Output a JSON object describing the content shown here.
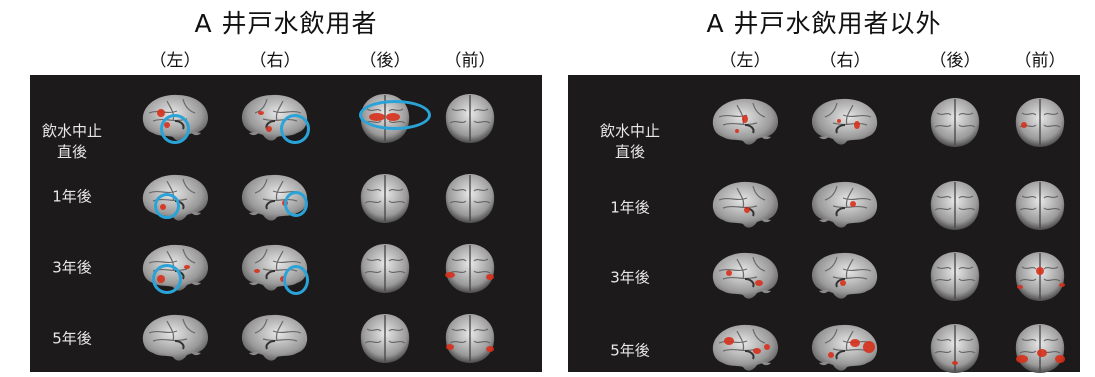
{
  "panels": [
    {
      "title": "A 井戸水飲用者",
      "views": [
        "（左）",
        "（右）",
        "（後）",
        "（前）"
      ],
      "rows": [
        "飲水中止\n直後",
        "1年後",
        "3年後",
        "5年後"
      ]
    },
    {
      "title": "A 井戸水飲用者以外",
      "views": [
        "（左）",
        "（右）",
        "（後）",
        "（前）"
      ],
      "rows": [
        "飲水中止\n直後",
        "1年後",
        "3年後",
        "5年後"
      ]
    }
  ],
  "colors": {
    "background": "#1c1a1a",
    "brain": "#9a9a9a",
    "activation": "#d8301c",
    "highlight_circle": "#2aa3d8"
  }
}
